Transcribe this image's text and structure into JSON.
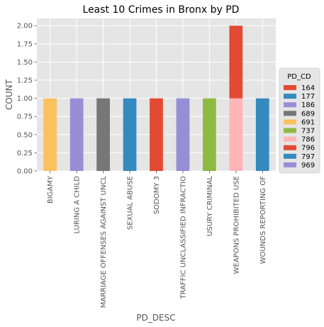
{
  "chart_data": {
    "type": "bar",
    "stacked": true,
    "title": "Least 10 Crimes in Bronx by PD",
    "xlabel": "PD_DESC",
    "ylabel": "COUNT",
    "ylim": [
      0,
      2.1
    ],
    "yticks": [
      "0.00",
      "0.25",
      "0.50",
      "0.75",
      "1.00",
      "1.25",
      "1.50",
      "1.75",
      "2.00"
    ],
    "grid": true,
    "legend_position": "right",
    "legend_title": "PD_CD",
    "categories": [
      "BIGAMY",
      "LURING A CHILD",
      "MARRIAGE OFFENSES AGAINST UNCL",
      "SEXUAL ABUSE",
      "SODOMY 3",
      "TRAFFIC UNCLASSIFIED INFRACTIO",
      "USURY CRIMINAL",
      "WEAPONS PROHIBITED USE",
      "WOUNDS REPORTING OF"
    ],
    "series": [
      {
        "name": "164",
        "color": "#E24A33",
        "values": [
          0,
          0,
          0,
          0,
          0,
          0,
          0,
          0,
          0
        ]
      },
      {
        "name": "177",
        "color": "#348ABD",
        "values": [
          0,
          0,
          0,
          1,
          0,
          0,
          0,
          0,
          0
        ]
      },
      {
        "name": "186",
        "color": "#988ED5",
        "values": [
          0,
          1,
          0,
          0,
          0,
          0,
          0,
          0,
          0
        ]
      },
      {
        "name": "689",
        "color": "#777777",
        "values": [
          0,
          0,
          1,
          0,
          0,
          0,
          0,
          0,
          0
        ]
      },
      {
        "name": "691",
        "color": "#FBC15E",
        "values": [
          1,
          0,
          0,
          0,
          0,
          0,
          0,
          0,
          0
        ]
      },
      {
        "name": "737",
        "color": "#8EBA42",
        "values": [
          0,
          0,
          0,
          0,
          0,
          0,
          1,
          0,
          0
        ]
      },
      {
        "name": "786",
        "color": "#FFB5B8",
        "values": [
          0,
          0,
          0,
          0,
          0,
          0,
          0,
          1,
          0
        ]
      },
      {
        "name": "796",
        "color": "#E24A33",
        "values": [
          0,
          0,
          0,
          0,
          1,
          0,
          0,
          1,
          0
        ]
      },
      {
        "name": "797",
        "color": "#348ABD",
        "values": [
          0,
          0,
          0,
          0,
          0,
          0,
          0,
          0,
          1
        ]
      },
      {
        "name": "969",
        "color": "#988ED5",
        "values": [
          0,
          0,
          0,
          0,
          0,
          1,
          0,
          0,
          0
        ]
      }
    ]
  }
}
